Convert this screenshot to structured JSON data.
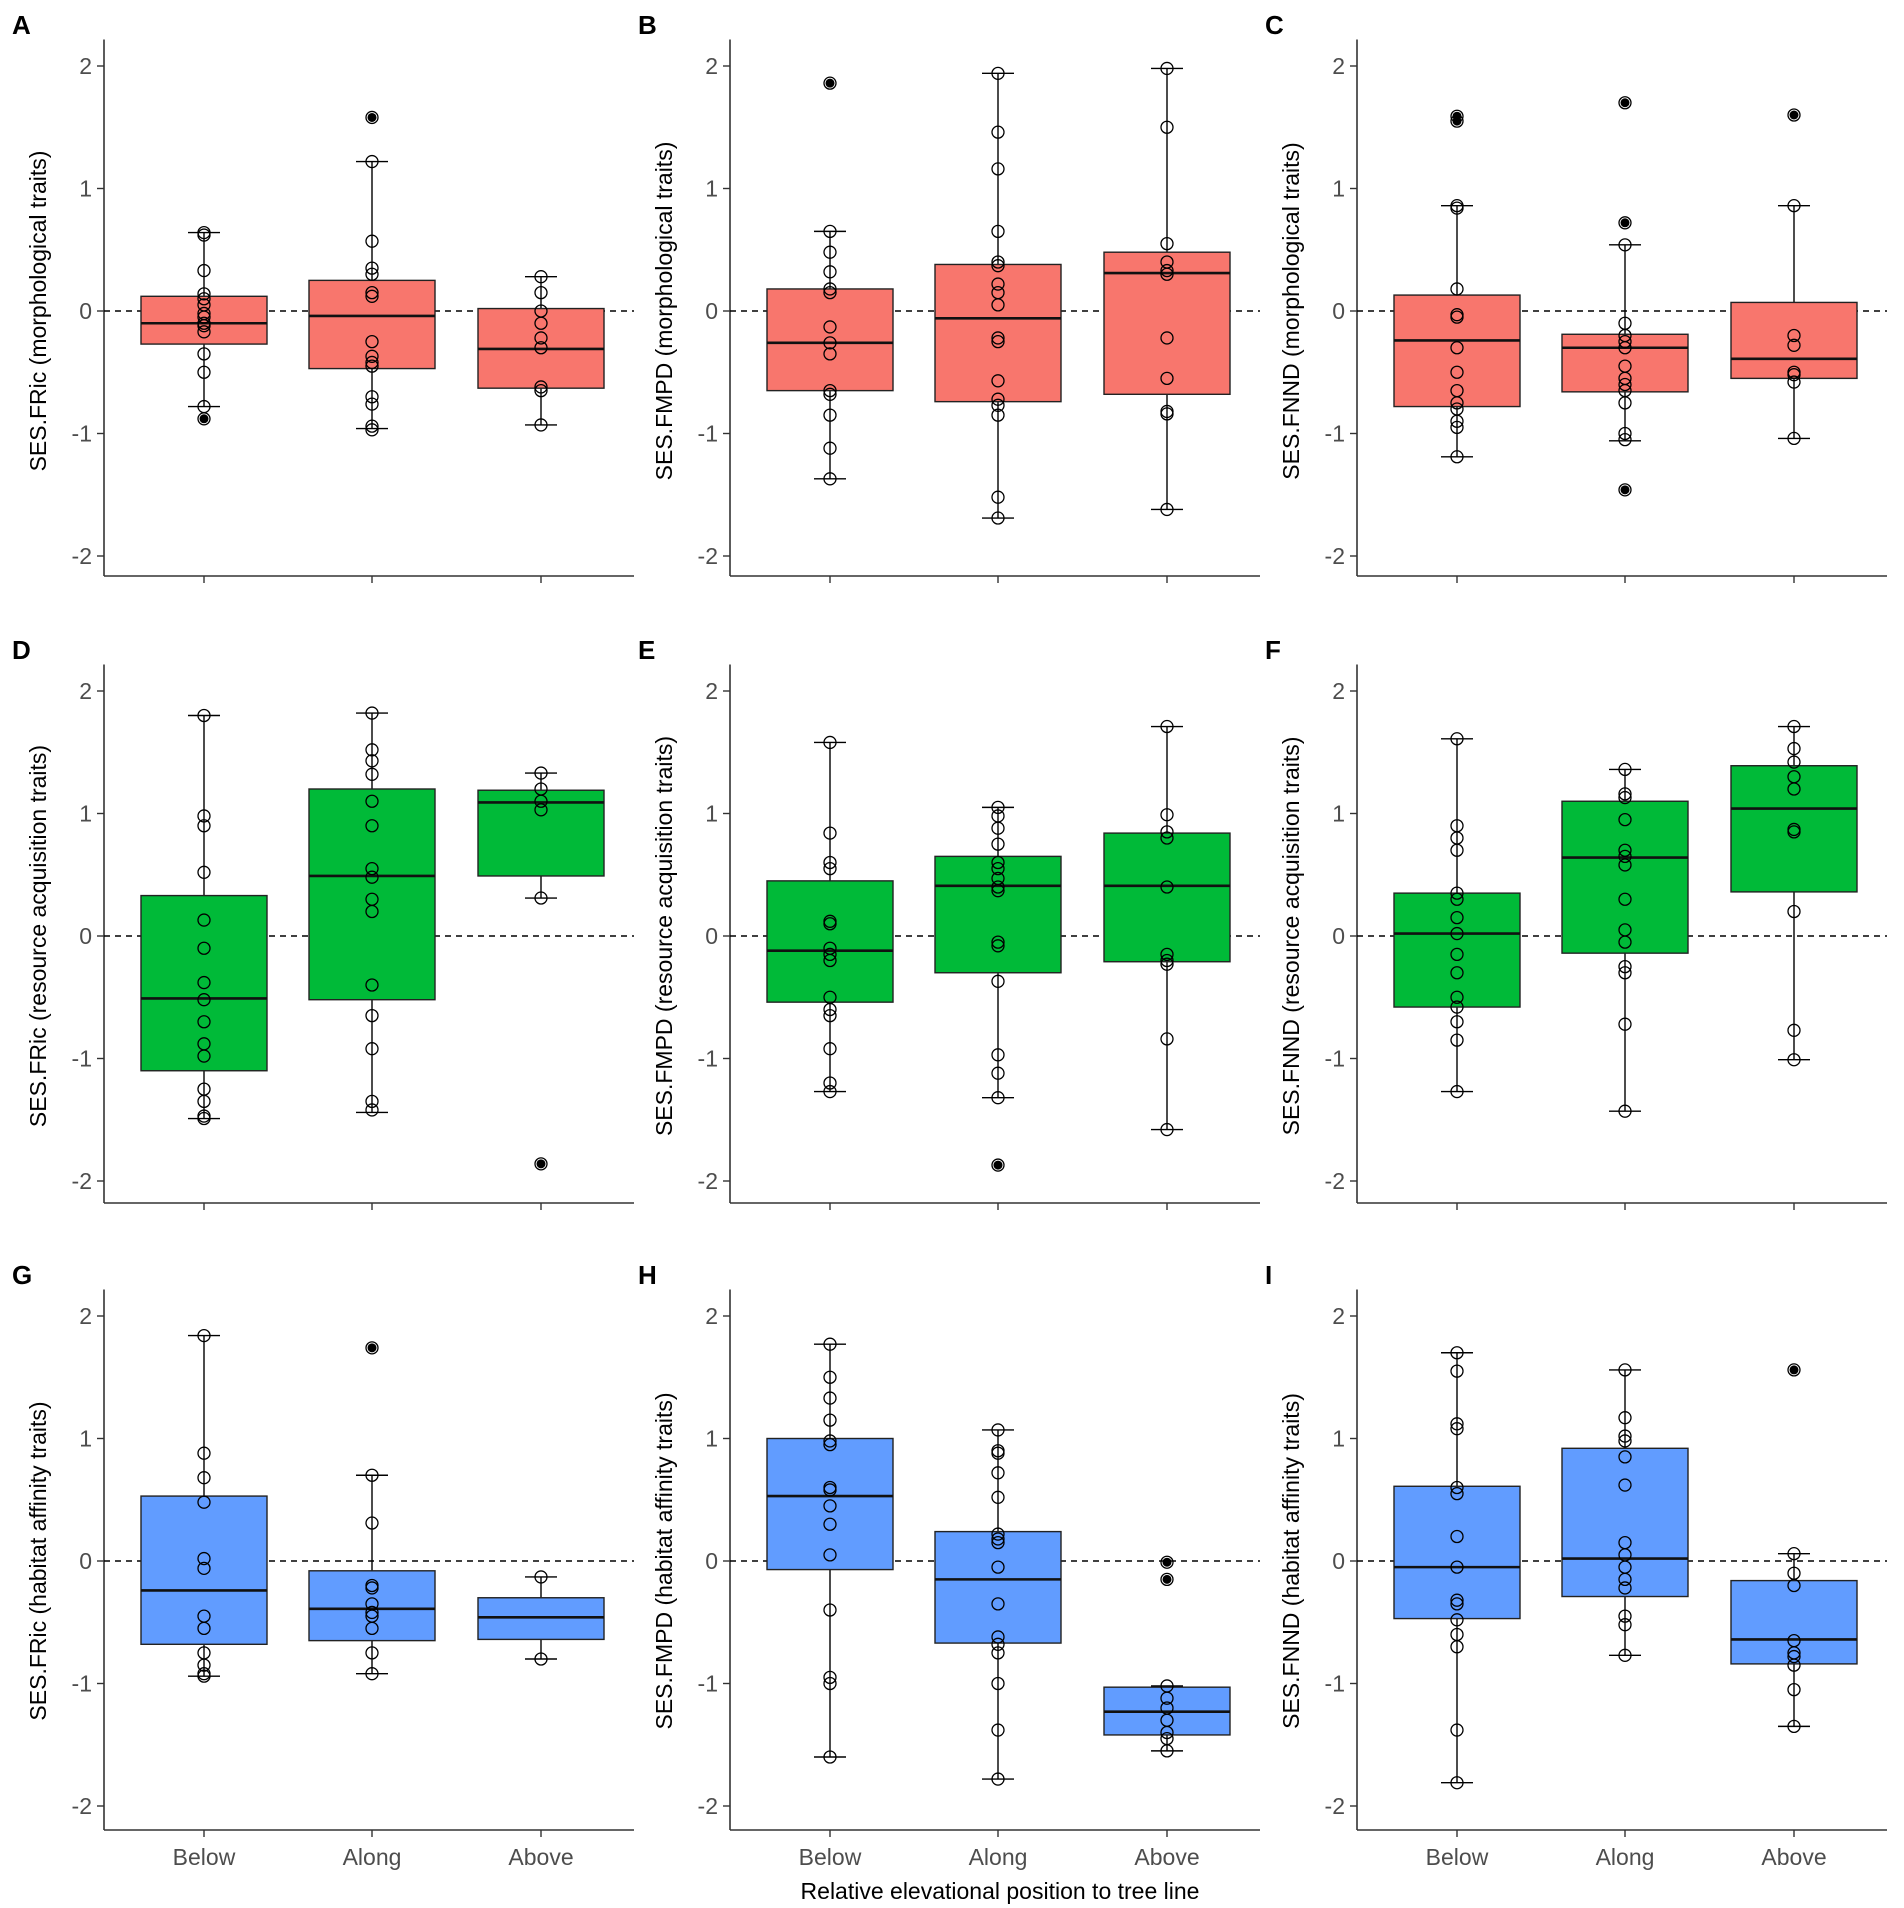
{
  "figure": {
    "x_axis_title": "Relative elevational position to tree line",
    "categories": [
      "Below",
      "Along",
      "Above"
    ],
    "y_ticks": [
      2,
      1,
      0,
      -1,
      -2
    ],
    "y_tick_labels": [
      "2",
      "1",
      "0",
      "-1",
      "-2"
    ],
    "colors": {
      "morphological": "#f8766d",
      "resource_acquisition": "#00ba38",
      "habitat_affinity": "#619cff"
    }
  },
  "chart_data": [
    {
      "panel": "A",
      "type": "box",
      "ylabel": "SES.FRic (morphological traits)",
      "ylim": [
        -2.2,
        2.2
      ],
      "color": "#f8766d",
      "categories": [
        "Below",
        "Along",
        "Above"
      ],
      "boxes": [
        {
          "category": "Below",
          "q1": -0.27,
          "median": -0.1,
          "q3": 0.12,
          "whisker_low": -0.78,
          "whisker_high": 0.64,
          "outliers": [
            -0.88
          ],
          "points": [
            0.64,
            0.62,
            0.33,
            0.14,
            0.1,
            0.05,
            -0.02,
            -0.05,
            -0.1,
            -0.12,
            -0.17,
            -0.35,
            -0.5,
            -0.78,
            -0.88
          ]
        },
        {
          "category": "Along",
          "q1": -0.47,
          "median": -0.04,
          "q3": 0.25,
          "whisker_low": -0.96,
          "whisker_high": 1.22,
          "outliers": [
            1.58
          ],
          "points": [
            1.58,
            1.22,
            0.57,
            0.35,
            0.3,
            0.15,
            0.12,
            -0.25,
            -0.37,
            -0.42,
            -0.45,
            -0.7,
            -0.76,
            -0.94,
            -0.97
          ]
        },
        {
          "category": "Above",
          "q1": -0.63,
          "median": -0.31,
          "q3": 0.02,
          "whisker_low": -0.93,
          "whisker_high": 0.28,
          "outliers": [],
          "points": [
            0.28,
            0.15,
            0.0,
            -0.1,
            -0.22,
            -0.3,
            -0.62,
            -0.65,
            -0.93
          ]
        }
      ]
    },
    {
      "panel": "B",
      "type": "box",
      "ylabel": "SES.FMPD (morphological traits)",
      "ylim": [
        -2.2,
        2.2
      ],
      "color": "#f8766d",
      "categories": [
        "Below",
        "Along",
        "Above"
      ],
      "boxes": [
        {
          "category": "Below",
          "q1": -0.65,
          "median": -0.26,
          "q3": 0.18,
          "whisker_low": -1.37,
          "whisker_high": 0.65,
          "outliers": [
            1.86
          ],
          "points": [
            1.86,
            0.65,
            0.48,
            0.32,
            0.18,
            0.15,
            -0.13,
            -0.26,
            -0.35,
            -0.65,
            -0.68,
            -0.85,
            -1.12,
            -1.37
          ]
        },
        {
          "category": "Along",
          "q1": -0.74,
          "median": -0.06,
          "q3": 0.38,
          "whisker_low": -1.69,
          "whisker_high": 1.94,
          "outliers": [],
          "points": [
            1.94,
            1.46,
            1.16,
            0.65,
            0.4,
            0.37,
            0.22,
            0.15,
            0.05,
            -0.22,
            -0.25,
            -0.57,
            -0.72,
            -0.77,
            -0.85,
            -1.52,
            -1.69
          ]
        },
        {
          "category": "Above",
          "q1": -0.68,
          "median": 0.31,
          "q3": 0.48,
          "whisker_low": -1.62,
          "whisker_high": 1.98,
          "outliers": [],
          "points": [
            1.98,
            1.5,
            0.55,
            0.4,
            0.33,
            0.3,
            -0.22,
            -0.55,
            -0.82,
            -0.84,
            -1.62
          ]
        }
      ]
    },
    {
      "panel": "C",
      "type": "box",
      "ylabel": "SES.FNND (morphological traits)",
      "ylim": [
        -2.2,
        2.2
      ],
      "color": "#f8766d",
      "categories": [
        "Below",
        "Along",
        "Above"
      ],
      "boxes": [
        {
          "category": "Below",
          "q1": -0.78,
          "median": -0.24,
          "q3": 0.13,
          "whisker_low": -1.19,
          "whisker_high": 0.86,
          "outliers": [
            1.59,
            1.55
          ],
          "points": [
            1.59,
            1.55,
            0.86,
            0.84,
            0.18,
            -0.03,
            -0.05,
            -0.3,
            -0.5,
            -0.65,
            -0.75,
            -0.8,
            -0.9,
            -0.95,
            -1.19
          ]
        },
        {
          "category": "Along",
          "q1": -0.66,
          "median": -0.3,
          "q3": -0.19,
          "whisker_low": -1.06,
          "whisker_high": 0.54,
          "outliers": [
            1.7,
            0.72,
            -1.46
          ],
          "points": [
            1.7,
            0.72,
            0.54,
            -0.1,
            -0.2,
            -0.25,
            -0.3,
            -0.45,
            -0.55,
            -0.6,
            -0.65,
            -0.75,
            -1.0,
            -1.05,
            -1.46
          ]
        },
        {
          "category": "Above",
          "q1": -0.55,
          "median": -0.39,
          "q3": 0.07,
          "whisker_low": -1.04,
          "whisker_high": 0.86,
          "outliers": [
            1.6
          ],
          "points": [
            1.6,
            0.86,
            -0.2,
            -0.28,
            -0.5,
            -0.52,
            -0.58,
            -1.04
          ]
        }
      ]
    },
    {
      "panel": "D",
      "type": "box",
      "ylabel": "SES.FRic (resource acquisition traits)",
      "ylim": [
        -2.2,
        2.2
      ],
      "color": "#00ba38",
      "categories": [
        "Below",
        "Along",
        "Above"
      ],
      "boxes": [
        {
          "category": "Below",
          "q1": -1.1,
          "median": -0.51,
          "q3": 0.33,
          "whisker_low": -1.49,
          "whisker_high": 1.8,
          "outliers": [],
          "points": [
            1.8,
            0.98,
            0.9,
            0.52,
            0.13,
            -0.1,
            -0.38,
            -0.52,
            -0.7,
            -0.88,
            -0.98,
            -1.25,
            -1.35,
            -1.47,
            -1.49
          ]
        },
        {
          "category": "Along",
          "q1": -0.52,
          "median": 0.49,
          "q3": 1.2,
          "whisker_low": -1.44,
          "whisker_high": 1.82,
          "outliers": [],
          "points": [
            1.82,
            1.52,
            1.43,
            1.32,
            1.1,
            0.9,
            0.55,
            0.48,
            0.3,
            0.2,
            -0.4,
            -0.65,
            -0.92,
            -1.35,
            -1.42
          ]
        },
        {
          "category": "Above",
          "q1": 0.49,
          "median": 1.09,
          "q3": 1.19,
          "whisker_low": 0.31,
          "whisker_high": 1.33,
          "outliers": [
            -1.86
          ],
          "points": [
            1.33,
            1.2,
            1.1,
            1.03,
            0.31,
            -1.86
          ]
        }
      ]
    },
    {
      "panel": "E",
      "type": "box",
      "ylabel": "SES.FMPD (resource acquisition traits)",
      "ylim": [
        -2.2,
        2.2
      ],
      "color": "#00ba38",
      "categories": [
        "Below",
        "Along",
        "Above"
      ],
      "boxes": [
        {
          "category": "Below",
          "q1": -0.54,
          "median": -0.12,
          "q3": 0.45,
          "whisker_low": -1.27,
          "whisker_high": 1.58,
          "outliers": [],
          "points": [
            1.58,
            0.84,
            0.6,
            0.55,
            0.12,
            0.1,
            -0.1,
            -0.15,
            -0.2,
            -0.5,
            -0.6,
            -0.65,
            -0.92,
            -1.2,
            -1.27
          ]
        },
        {
          "category": "Along",
          "q1": -0.3,
          "median": 0.41,
          "q3": 0.65,
          "whisker_low": -1.32,
          "whisker_high": 1.05,
          "outliers": [
            -1.87
          ],
          "points": [
            1.05,
            0.98,
            0.88,
            0.75,
            0.6,
            0.55,
            0.47,
            0.4,
            0.37,
            -0.05,
            -0.08,
            -0.37,
            -0.97,
            -1.12,
            -1.32,
            -1.87
          ]
        },
        {
          "category": "Above",
          "q1": -0.21,
          "median": 0.41,
          "q3": 0.84,
          "whisker_low": -1.58,
          "whisker_high": 1.71,
          "outliers": [],
          "points": [
            1.71,
            0.99,
            0.85,
            0.8,
            0.4,
            -0.15,
            -0.2,
            -0.23,
            -0.84,
            -1.58
          ]
        }
      ]
    },
    {
      "panel": "F",
      "type": "box",
      "ylabel": "SES.FNND (resource acquisition traits)",
      "ylim": [
        -2.2,
        2.2
      ],
      "color": "#00ba38",
      "categories": [
        "Below",
        "Along",
        "Above"
      ],
      "boxes": [
        {
          "category": "Below",
          "q1": -0.58,
          "median": 0.02,
          "q3": 0.35,
          "whisker_low": -1.27,
          "whisker_high": 1.61,
          "outliers": [],
          "points": [
            1.61,
            0.9,
            0.8,
            0.7,
            0.35,
            0.3,
            0.15,
            0.02,
            -0.15,
            -0.3,
            -0.5,
            -0.58,
            -0.7,
            -0.85,
            -1.27
          ]
        },
        {
          "category": "Along",
          "q1": -0.14,
          "median": 0.64,
          "q3": 1.1,
          "whisker_low": -1.43,
          "whisker_high": 1.36,
          "outliers": [],
          "points": [
            1.36,
            1.16,
            1.13,
            0.95,
            0.7,
            0.65,
            0.58,
            0.3,
            0.05,
            -0.05,
            -0.25,
            -0.3,
            -0.72,
            -1.43
          ]
        },
        {
          "category": "Above",
          "q1": 0.36,
          "median": 1.04,
          "q3": 1.39,
          "whisker_low": -1.01,
          "whisker_high": 1.71,
          "outliers": [],
          "points": [
            1.71,
            1.53,
            1.42,
            1.3,
            1.2,
            0.87,
            0.85,
            0.2,
            -0.77,
            -1.01
          ]
        }
      ]
    },
    {
      "panel": "G",
      "type": "box",
      "ylabel": "SES.FRic (habitat affinity traits)",
      "ylim": [
        -2.2,
        2.2
      ],
      "color": "#619cff",
      "categories": [
        "Below",
        "Along",
        "Above"
      ],
      "boxes": [
        {
          "category": "Below",
          "q1": -0.68,
          "median": -0.24,
          "q3": 0.53,
          "whisker_low": -0.94,
          "whisker_high": 1.84,
          "outliers": [],
          "points": [
            1.84,
            0.88,
            0.68,
            0.48,
            0.02,
            -0.06,
            -0.45,
            -0.55,
            -0.75,
            -0.85,
            -0.92,
            -0.94
          ]
        },
        {
          "category": "Along",
          "q1": -0.65,
          "median": -0.39,
          "q3": -0.08,
          "whisker_low": -0.92,
          "whisker_high": 0.7,
          "outliers": [
            1.74
          ],
          "points": [
            1.74,
            0.7,
            0.31,
            -0.2,
            -0.22,
            -0.35,
            -0.42,
            -0.45,
            -0.55,
            -0.75,
            -0.92
          ]
        },
        {
          "category": "Above",
          "q1": -0.64,
          "median": -0.46,
          "q3": -0.3,
          "whisker_low": -0.8,
          "whisker_high": -0.13,
          "outliers": [],
          "points": [
            -0.13,
            -0.8
          ]
        }
      ]
    },
    {
      "panel": "H",
      "type": "box",
      "ylabel": "SES.FMPD (habitat affinity traits)",
      "ylim": [
        -2.2,
        2.2
      ],
      "color": "#619cff",
      "categories": [
        "Below",
        "Along",
        "Above"
      ],
      "boxes": [
        {
          "category": "Below",
          "q1": -0.07,
          "median": 0.53,
          "q3": 1.0,
          "whisker_low": -1.6,
          "whisker_high": 1.77,
          "outliers": [],
          "points": [
            1.77,
            1.5,
            1.33,
            1.15,
            0.98,
            0.95,
            0.6,
            0.58,
            0.45,
            0.3,
            0.05,
            -0.4,
            -0.95,
            -1.0,
            -1.6
          ]
        },
        {
          "category": "Along",
          "q1": -0.67,
          "median": -0.15,
          "q3": 0.24,
          "whisker_low": -1.78,
          "whisker_high": 1.07,
          "outliers": [],
          "points": [
            1.07,
            0.9,
            0.88,
            0.72,
            0.52,
            0.22,
            0.18,
            0.15,
            -0.05,
            -0.35,
            -0.62,
            -0.68,
            -0.75,
            -1.0,
            -1.38,
            -1.78
          ]
        },
        {
          "category": "Above",
          "q1": -1.42,
          "median": -1.23,
          "q3": -1.03,
          "whisker_low": -1.55,
          "whisker_high": -1.02,
          "outliers": [
            -0.01,
            -0.15
          ],
          "points": [
            -0.01,
            -0.15,
            -1.02,
            -1.12,
            -1.2,
            -1.3,
            -1.4,
            -1.45,
            -1.55
          ]
        }
      ]
    },
    {
      "panel": "I",
      "type": "box",
      "ylabel": "SES.FNND (habitat affinity traits)",
      "ylim": [
        -2.2,
        2.2
      ],
      "color": "#619cff",
      "categories": [
        "Below",
        "Along",
        "Above"
      ],
      "boxes": [
        {
          "category": "Below",
          "q1": -0.47,
          "median": -0.05,
          "q3": 0.61,
          "whisker_low": -1.81,
          "whisker_high": 1.7,
          "outliers": [],
          "points": [
            1.7,
            1.55,
            1.12,
            1.08,
            0.6,
            0.55,
            0.2,
            -0.05,
            -0.32,
            -0.35,
            -0.48,
            -0.6,
            -0.7,
            -1.38,
            -1.81
          ]
        },
        {
          "category": "Along",
          "q1": -0.29,
          "median": 0.02,
          "q3": 0.92,
          "whisker_low": -0.77,
          "whisker_high": 1.56,
          "outliers": [],
          "points": [
            1.56,
            1.17,
            1.02,
            0.98,
            0.85,
            0.62,
            0.15,
            0.05,
            -0.05,
            -0.15,
            -0.22,
            -0.45,
            -0.52,
            -0.77
          ]
        },
        {
          "category": "Above",
          "q1": -0.84,
          "median": -0.64,
          "q3": -0.16,
          "whisker_low": -1.35,
          "whisker_high": 0.06,
          "outliers": [
            1.56
          ],
          "points": [
            1.56,
            0.06,
            -0.1,
            -0.2,
            -0.65,
            -0.75,
            -0.78,
            -0.85,
            -1.05,
            -1.35
          ]
        }
      ]
    }
  ]
}
